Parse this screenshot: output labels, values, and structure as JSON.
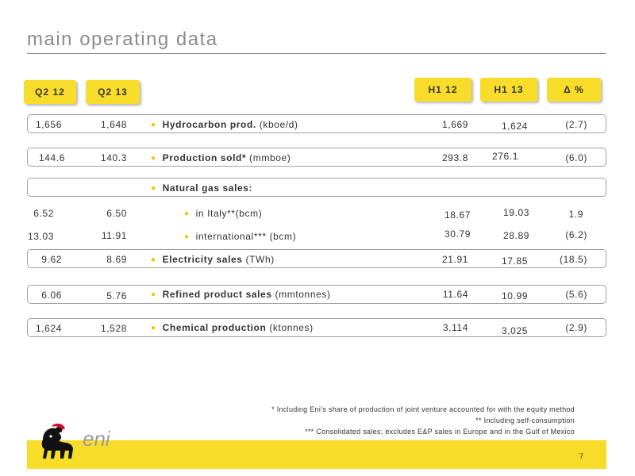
{
  "title": "main operating data",
  "headers": {
    "q2_12": "Q2 12",
    "q2_13": "Q2 13",
    "h1_12": "H1 12",
    "h1_13": "H1 13",
    "delta": "Δ %"
  },
  "rows": [
    {
      "q2_12": "1,656",
      "q2_13": "1,648",
      "label_bold": "Hydrocarbon prod.",
      "label_rest": " (kboe/d)",
      "h1_12": "1,669",
      "h1_13": "1,624",
      "delta": "(2.7)"
    },
    {
      "q2_12": "144.6",
      "q2_13": "140.3",
      "label_bold": "Production  sold*",
      "label_rest": " (mmboe)",
      "h1_12": "293.8",
      "h1_13": "276.1",
      "delta": "(6.0)"
    },
    {
      "label_bold": "Natural gas sales:"
    },
    {
      "q2_12": "6.52",
      "q2_13": "6.50",
      "label_rest": "in Italy**(bcm)",
      "h1_12": "18.67",
      "h1_13": "19.03",
      "delta": "1.9"
    },
    {
      "q2_12": "13.03",
      "q2_13": "11.91",
      "label_rest": "international*** (bcm)",
      "h1_12": "30.79",
      "h1_13": "28.89",
      "delta": "(6.2)"
    },
    {
      "q2_12": "9.62",
      "q2_13": "8.69",
      "label_bold": "Electricity sales",
      "label_rest": " (TWh)",
      "h1_12": "21.91",
      "h1_13": "17.85",
      "delta": "(18.5)"
    },
    {
      "q2_12": "6.06",
      "q2_13": "5.76",
      "label_bold": "Refined product sales",
      "label_rest": " (mmtonnes)",
      "h1_12": "11.64",
      "h1_13": "10.99",
      "delta": "(5.6)"
    },
    {
      "q2_12": "1,624",
      "q2_13": "1,528",
      "label_bold": "Chemical production",
      "label_rest": " (ktonnes)",
      "h1_12": "3,114",
      "h1_13": "3,025",
      "delta": "(2.9)"
    }
  ],
  "footnotes": [
    "*   Including Eni’s share of production of joint venture accounted for with the equity method",
    "** Including self-consumption",
    "***  Consolidated sales; excludes E&P sales in Europe and in the Gulf of Mexico"
  ],
  "logo": {
    "text": "eni",
    "icon": "six-legged-dog-logo"
  },
  "page_number": "7",
  "colors": {
    "accent": "#f7dd2a",
    "bullet": "#f2c400",
    "title": "#8c8c8c"
  }
}
